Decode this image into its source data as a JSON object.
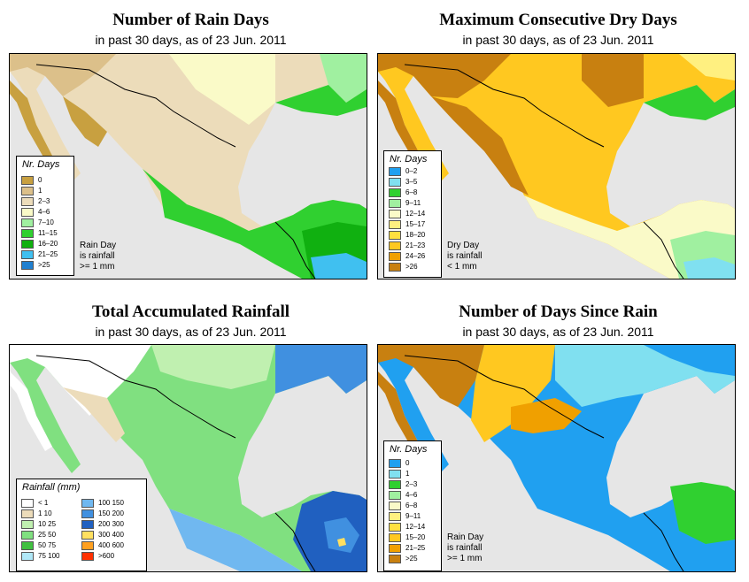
{
  "panels": [
    {
      "title": "Number of Rain Days",
      "subtitle": "in past 30 days, as of  23 Jun. 2011",
      "legend_title": "Nr. Days",
      "legend_items": [
        {
          "label": "0",
          "color": "#c8a040"
        },
        {
          "label": "1",
          "color": "#dcc08a"
        },
        {
          "label": "2–3",
          "color": "#ecdcba"
        },
        {
          "label": "4–6",
          "color": "#fafac8"
        },
        {
          "label": "7–10",
          "color": "#a0f0a0"
        },
        {
          "label": "11–15",
          "color": "#30d030"
        },
        {
          "label": "16–20",
          "color": "#10b010"
        },
        {
          "label": "21–25",
          "color": "#40c0f0"
        },
        {
          "label": ">25",
          "color": "#2080d0"
        }
      ],
      "note": [
        "Rain Day",
        "is rainfall",
        ">= 1 mm"
      ]
    },
    {
      "title": "Maximum Consecutive Dry Days",
      "subtitle": "in past 30 days, as of  23 Jun. 2011",
      "legend_title": "Nr. Days",
      "legend_items": [
        {
          "label": "0–2",
          "color": "#20a0f0"
        },
        {
          "label": "3–5",
          "color": "#80e0f0"
        },
        {
          "label": "6–8",
          "color": "#30d030"
        },
        {
          "label": "9–11",
          "color": "#a0f0a0"
        },
        {
          "label": "12–14",
          "color": "#fafac8"
        },
        {
          "label": "15–17",
          "color": "#fff080"
        },
        {
          "label": "18–20",
          "color": "#ffe040"
        },
        {
          "label": "21–23",
          "color": "#ffc820"
        },
        {
          "label": "24–26",
          "color": "#f0a000"
        },
        {
          "label": ">26",
          "color": "#c88010"
        }
      ],
      "note": [
        "Dry Day",
        "is rainfall",
        "< 1 mm"
      ]
    },
    {
      "title": "Total Accumulated Rainfall",
      "subtitle": "in past 30 days, as of  23 Jun. 2011",
      "legend_title": "Rainfall (mm)",
      "legend_items": [
        {
          "label": "< 1",
          "color": "#ffffff"
        },
        {
          "label": "1   10",
          "color": "#ecdcba"
        },
        {
          "label": "10   25",
          "color": "#c0f0b0"
        },
        {
          "label": "25   50",
          "color": "#80e080"
        },
        {
          "label": "50   75",
          "color": "#40c040"
        },
        {
          "label": "75   100",
          "color": "#b0e8f8"
        },
        {
          "label": "100   150",
          "color": "#70b8f0"
        },
        {
          "label": "150   200",
          "color": "#4090e0"
        },
        {
          "label": "200   300",
          "color": "#2060c0"
        },
        {
          "label": "300   400",
          "color": "#ffe060"
        },
        {
          "label": "400   600",
          "color": "#ffa020"
        },
        {
          "label": ">600",
          "color": "#ff3000"
        }
      ]
    },
    {
      "title": "Number of Days Since Rain",
      "subtitle": "in past 30 days, as of  23 Jun. 2011",
      "legend_title": "Nr. Days",
      "legend_items": [
        {
          "label": "0",
          "color": "#20a0f0"
        },
        {
          "label": "1",
          "color": "#80e0f0"
        },
        {
          "label": "2–3",
          "color": "#30d030"
        },
        {
          "label": "4–6",
          "color": "#a0f0a0"
        },
        {
          "label": "6–8",
          "color": "#fafac8"
        },
        {
          "label": "9–11",
          "color": "#fff080"
        },
        {
          "label": "12–14",
          "color": "#ffe040"
        },
        {
          "label": "15–20",
          "color": "#ffc820"
        },
        {
          "label": "21–25",
          "color": "#f0a000"
        },
        {
          "label": ">25",
          "color": "#c88010"
        }
      ],
      "note": [
        "Rain Day",
        "is rainfall",
        ">= 1 mm"
      ]
    }
  ],
  "colors": {
    "ocean": "#e6e6e6",
    "border": "#000000"
  }
}
